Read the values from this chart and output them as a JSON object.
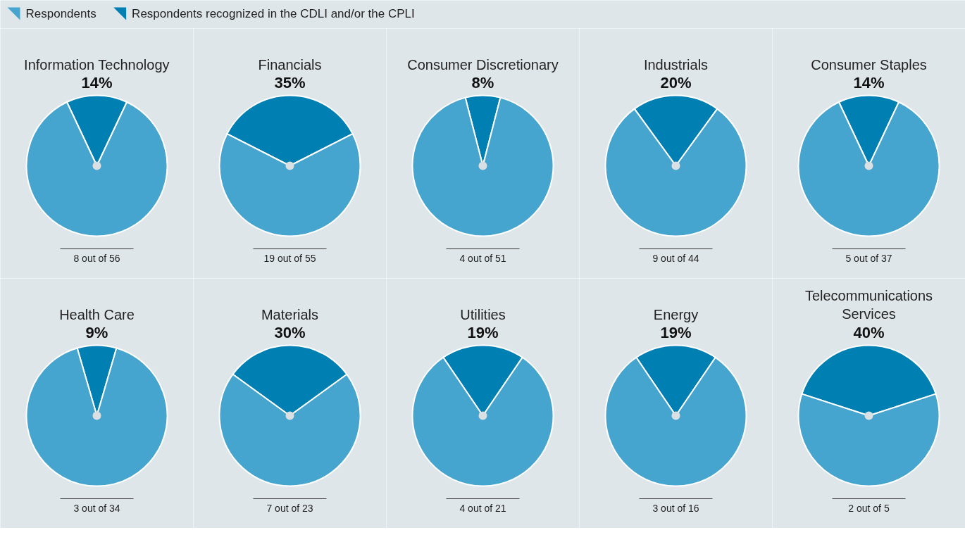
{
  "chart_data": [
    {
      "type": "pie",
      "title": "Information Technology",
      "subtitle": "14%",
      "categories": [
        "Respondents",
        "Respondents recognized in the CDLI and/or the CPLI"
      ],
      "values": [
        86,
        14
      ],
      "colors": [
        "#45a5cf",
        "#0080b2"
      ],
      "annotations": [
        "8 out of 56"
      ],
      "legend": "top"
    },
    {
      "type": "pie",
      "title": "Financials",
      "subtitle": "35%",
      "categories": [
        null,
        null
      ],
      "values": [
        65,
        35
      ],
      "colors": [
        "#45a5cf",
        "#0080b2"
      ],
      "annotations": [
        "19 out of 55"
      ]
    },
    {
      "type": "pie",
      "title": "Consumer Discretionary",
      "subtitle": "8%",
      "categories": [
        null,
        null
      ],
      "values": [
        92,
        8
      ],
      "colors": [
        "#45a5cf",
        "#0080b2"
      ],
      "annotations": [
        "4 out of 51"
      ]
    },
    {
      "type": "pie",
      "title": "Industrials",
      "subtitle": "20%",
      "categories": [
        null,
        null
      ],
      "values": [
        80,
        20
      ],
      "colors": [
        "#45a5cf",
        "#0080b2"
      ],
      "annotations": [
        "9 out of 44"
      ]
    },
    {
      "type": "pie",
      "title": "Consumer Staples",
      "subtitle": "14%",
      "categories": [
        null,
        null
      ],
      "values": [
        86,
        14
      ],
      "colors": [
        "#45a5cf",
        "#0080b2"
      ],
      "annotations": [
        "5 out of 37"
      ]
    },
    {
      "type": "pie",
      "title": "Health Care",
      "subtitle": "9%",
      "categories": [
        null,
        null
      ],
      "values": [
        91,
        9
      ],
      "colors": [
        "#45a5cf",
        "#0080b2"
      ],
      "annotations": [
        "3 out of 34"
      ]
    },
    {
      "type": "pie",
      "title": "Materials",
      "subtitle": "30%",
      "categories": [
        null,
        null
      ],
      "values": [
        70,
        30
      ],
      "colors": [
        "#45a5cf",
        "#0080b2"
      ],
      "annotations": [
        "7 out of 23"
      ]
    },
    {
      "type": "pie",
      "title": "Utilities",
      "subtitle": "19%",
      "categories": [
        null,
        null
      ],
      "values": [
        81,
        19
      ],
      "colors": [
        "#45a5cf",
        "#0080b2"
      ],
      "annotations": [
        "4 out of 21"
      ]
    },
    {
      "type": "pie",
      "title": "Energy",
      "subtitle": "19%",
      "categories": [
        null,
        null
      ],
      "values": [
        81,
        19
      ],
      "colors": [
        "#45a5cf",
        "#0080b2"
      ],
      "annotations": [
        "3 out of 16"
      ]
    },
    {
      "type": "pie",
      "title": "Telecommunications Services",
      "subtitle": "40%",
      "categories": [
        null,
        null
      ],
      "values": [
        60,
        40
      ],
      "colors": [
        "#45a5cf",
        "#0080b2"
      ],
      "annotations": [
        "2 out of 5"
      ]
    }
  ]
}
